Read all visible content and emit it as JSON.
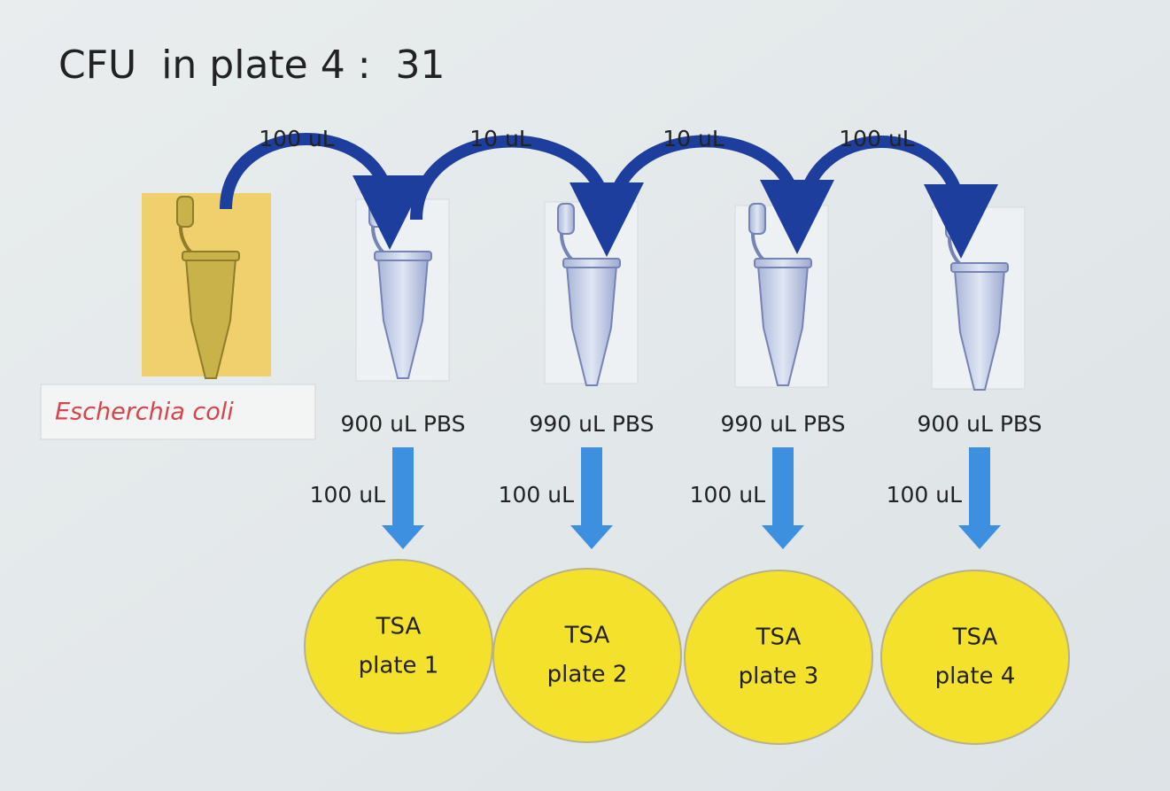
{
  "title": "CFU  in plate 4 :  31",
  "source": {
    "label": "Escherchia coli"
  },
  "transfers": [
    "100 uL",
    "10 uL",
    "10 uL",
    "100 uL"
  ],
  "tubes": [
    {
      "label": "900 uL PBS",
      "plating_volume": "100 uL",
      "plate": {
        "medium": "TSA",
        "name": "plate 1"
      }
    },
    {
      "label": "990 uL PBS",
      "plating_volume": "100 uL",
      "plate": {
        "medium": "TSA",
        "name": "plate 2"
      }
    },
    {
      "label": "990 uL PBS",
      "plating_volume": "100 uL",
      "plate": {
        "medium": "TSA",
        "name": "plate 3"
      }
    },
    {
      "label": "900 uL PBS",
      "plating_volume": "100 uL",
      "plate": {
        "medium": "TSA",
        "name": "plate 4"
      }
    }
  ]
}
